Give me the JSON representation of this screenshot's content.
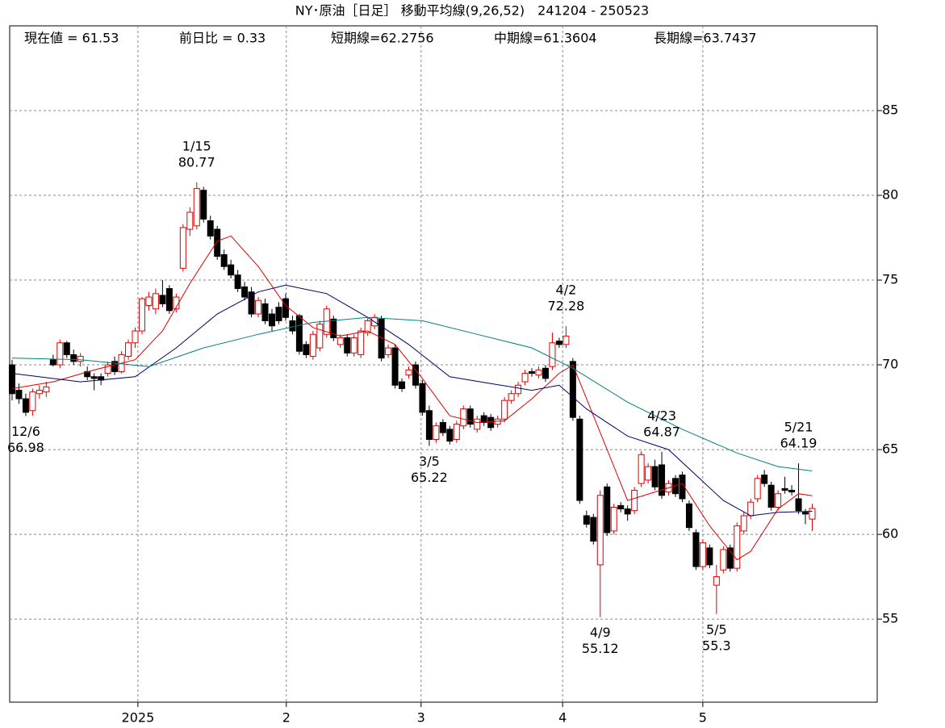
{
  "chart_data": {
    "type": "candlestick",
    "title": "NY･原油［日足］ 移動平均線(9,26,52)　241204 - 250523",
    "header": [
      "現在値 = 61.53",
      "前日比 = 0.33",
      "短期線=62.2756",
      "中期線=61.3604",
      "長期線=63.7437"
    ],
    "ylim": [
      50.1,
      90
    ],
    "yticks": [
      55,
      60,
      65,
      70,
      75,
      80,
      85
    ],
    "xlim": [
      -0.35,
      126.5
    ],
    "xticks": [
      {
        "value": 18.4,
        "label": "2025"
      },
      {
        "value": 40.1,
        "label": "2"
      },
      {
        "value": 59.8,
        "label": "3"
      },
      {
        "value": 80.5,
        "label": "4"
      },
      {
        "value": 101,
        "label": "5"
      }
    ],
    "grid": true,
    "up_color": "#e00000",
    "down_color": "#000000",
    "ohlc": [
      [
        70.0,
        70.3,
        67.9,
        68.3
      ],
      [
        68.5,
        68.9,
        67.7,
        68.0
      ],
      [
        68.0,
        68.3,
        66.98,
        67.2
      ],
      [
        67.3,
        68.6,
        67.0,
        68.4
      ],
      [
        68.3,
        68.8,
        68.0,
        68.5
      ],
      [
        68.4,
        69.0,
        68.1,
        68.7
      ],
      [
        70.3,
        70.6,
        69.9,
        70.0
      ],
      [
        70.0,
        71.5,
        69.8,
        71.3
      ],
      [
        71.3,
        71.4,
        70.4,
        70.6
      ],
      [
        70.6,
        70.9,
        70.0,
        70.2
      ],
      [
        70.2,
        70.7,
        69.9,
        70.5
      ],
      [
        69.6,
        69.9,
        69.1,
        69.3
      ],
      [
        69.3,
        69.5,
        68.5,
        69.2
      ],
      [
        69.3,
        69.5,
        68.8,
        69.1
      ],
      [
        69.5,
        70.2,
        69.3,
        70.0
      ],
      [
        70.2,
        70.5,
        69.4,
        69.6
      ],
      [
        69.6,
        70.8,
        69.5,
        70.6
      ],
      [
        70.5,
        71.5,
        70.3,
        71.3
      ],
      [
        71.3,
        72.2,
        71.0,
        72.0
      ],
      [
        72.0,
        74.0,
        71.8,
        73.9
      ],
      [
        73.5,
        74.3,
        73.2,
        74.0
      ],
      [
        73.3,
        74.5,
        73.0,
        74.2
      ],
      [
        74.1,
        75.0,
        73.4,
        73.6
      ],
      [
        74.5,
        74.7,
        73.0,
        73.2
      ],
      [
        73.3,
        74.2,
        73.1,
        74.0
      ],
      [
        75.7,
        78.3,
        75.5,
        78.1
      ],
      [
        78.0,
        79.3,
        77.6,
        79.0
      ],
      [
        78.2,
        80.77,
        78.0,
        80.4
      ],
      [
        80.3,
        80.5,
        78.4,
        78.6
      ],
      [
        78.5,
        78.8,
        77.4,
        77.6
      ],
      [
        78.0,
        78.2,
        76.2,
        76.4
      ],
      [
        76.5,
        76.8,
        75.6,
        75.8
      ],
      [
        75.9,
        76.2,
        75.1,
        75.3
      ],
      [
        75.3,
        75.6,
        74.3,
        74.5
      ],
      [
        74.6,
        74.9,
        73.8,
        74.0
      ],
      [
        74.3,
        74.6,
        72.8,
        73.0
      ],
      [
        73.0,
        74.0,
        72.8,
        73.8
      ],
      [
        73.6,
        73.9,
        72.4,
        72.6
      ],
      [
        73.0,
        73.3,
        72.0,
        72.3
      ],
      [
        73.4,
        73.7,
        72.4,
        72.6
      ],
      [
        73.9,
        74.2,
        72.6,
        72.8
      ],
      [
        72.6,
        72.9,
        71.8,
        72.0
      ],
      [
        72.9,
        73.0,
        70.6,
        70.8
      ],
      [
        71.2,
        71.4,
        70.4,
        70.6
      ],
      [
        70.5,
        72.0,
        70.3,
        71.8
      ],
      [
        71.0,
        72.6,
        70.8,
        72.4
      ],
      [
        71.8,
        73.5,
        71.6,
        73.3
      ],
      [
        72.7,
        72.9,
        71.4,
        71.6
      ],
      [
        71.2,
        71.8,
        71.0,
        71.6
      ],
      [
        71.6,
        71.8,
        70.5,
        70.7
      ],
      [
        70.7,
        71.8,
        70.5,
        71.6
      ],
      [
        70.6,
        72.2,
        70.4,
        72.0
      ],
      [
        71.9,
        72.8,
        71.7,
        72.6
      ],
      [
        72.3,
        73.0,
        72.1,
        72.8
      ],
      [
        72.7,
        72.9,
        70.2,
        70.4
      ],
      [
        70.6,
        71.2,
        70.4,
        71.0
      ],
      [
        71.0,
        71.2,
        68.6,
        68.8
      ],
      [
        69.0,
        69.2,
        68.4,
        68.6
      ],
      [
        69.4,
        69.9,
        69.2,
        69.7
      ],
      [
        70.0,
        70.2,
        68.6,
        68.8
      ],
      [
        68.9,
        69.1,
        67.0,
        67.2
      ],
      [
        67.3,
        67.6,
        65.22,
        65.6
      ],
      [
        65.6,
        66.6,
        65.4,
        66.4
      ],
      [
        66.6,
        66.8,
        65.8,
        66.0
      ],
      [
        66.2,
        66.4,
        65.3,
        65.5
      ],
      [
        65.6,
        66.7,
        65.4,
        66.5
      ],
      [
        66.4,
        67.6,
        66.2,
        67.4
      ],
      [
        67.4,
        67.6,
        66.3,
        66.5
      ],
      [
        66.2,
        67.0,
        66.0,
        66.8
      ],
      [
        67.0,
        67.2,
        66.4,
        66.6
      ],
      [
        66.9,
        67.1,
        66.1,
        66.3
      ],
      [
        66.5,
        67.0,
        66.3,
        66.8
      ],
      [
        66.8,
        68.1,
        66.6,
        67.9
      ],
      [
        67.9,
        68.5,
        67.7,
        68.3
      ],
      [
        68.3,
        69.0,
        68.1,
        68.8
      ],
      [
        69.0,
        69.7,
        68.8,
        69.5
      ],
      [
        69.6,
        69.8,
        69.3,
        69.5
      ],
      [
        69.4,
        69.9,
        69.2,
        69.7
      ],
      [
        69.8,
        70.0,
        69.0,
        69.2
      ],
      [
        69.9,
        71.9,
        69.7,
        71.3
      ],
      [
        71.4,
        71.6,
        71.0,
        71.2
      ],
      [
        71.2,
        72.28,
        71.0,
        71.7
      ],
      [
        70.2,
        70.4,
        66.7,
        66.9
      ],
      [
        66.8,
        67.0,
        61.8,
        62.0
      ],
      [
        61.1,
        61.4,
        60.4,
        60.6
      ],
      [
        61.0,
        61.2,
        59.4,
        59.6
      ],
      [
        58.2,
        62.6,
        55.12,
        62.3
      ],
      [
        62.8,
        63.0,
        59.9,
        60.1
      ],
      [
        60.2,
        61.8,
        60.0,
        61.6
      ],
      [
        61.7,
        61.9,
        61.3,
        61.5
      ],
      [
        61.5,
        61.7,
        60.8,
        61.2
      ],
      [
        61.4,
        62.8,
        61.2,
        62.6
      ],
      [
        63.0,
        64.9,
        62.8,
        64.7
      ],
      [
        63.2,
        64.2,
        63.0,
        64.0
      ],
      [
        64.0,
        64.4,
        62.6,
        62.8
      ],
      [
        64.1,
        64.87,
        62.1,
        62.3
      ],
      [
        62.5,
        63.2,
        62.3,
        63.0
      ],
      [
        63.3,
        63.5,
        62.2,
        62.4
      ],
      [
        63.5,
        63.7,
        61.9,
        62.1
      ],
      [
        61.8,
        62.0,
        60.2,
        60.4
      ],
      [
        60.1,
        60.3,
        57.9,
        58.1
      ],
      [
        58.1,
        59.7,
        57.9,
        59.5
      ],
      [
        59.2,
        59.4,
        58.0,
        58.2
      ],
      [
        57.0,
        58.2,
        55.3,
        57.5
      ],
      [
        57.9,
        59.3,
        57.7,
        59.1
      ],
      [
        59.2,
        59.4,
        57.8,
        58.0
      ],
      [
        58.0,
        60.7,
        57.8,
        60.5
      ],
      [
        60.2,
        61.3,
        60.0,
        61.1
      ],
      [
        61.1,
        62.1,
        60.9,
        61.9
      ],
      [
        62.1,
        63.5,
        61.9,
        63.3
      ],
      [
        63.5,
        63.8,
        62.8,
        63.0
      ],
      [
        62.9,
        63.1,
        61.4,
        61.6
      ],
      [
        61.6,
        62.6,
        61.4,
        62.4
      ],
      [
        62.7,
        63.4,
        62.4,
        62.6
      ],
      [
        62.6,
        62.9,
        62.3,
        62.5
      ],
      [
        62.1,
        64.19,
        61.2,
        61.4
      ],
      [
        61.3,
        61.5,
        60.6,
        61.2
      ],
      [
        60.9,
        61.8,
        60.2,
        61.53
      ]
    ],
    "series": [
      {
        "color": "#e00000",
        "x": [
          0,
          6,
          12,
          18,
          22,
          26,
          30,
          32,
          36,
          40,
          44,
          48,
          52,
          56,
          60,
          64,
          68,
          72,
          76,
          80,
          82,
          86,
          90,
          94,
          98,
          102,
          106,
          108,
          112,
          115,
          117
        ],
        "values": [
          68.6,
          69.0,
          69.7,
          70.3,
          72.0,
          74.8,
          77.3,
          77.6,
          75.8,
          73.5,
          72.2,
          71.7,
          72.0,
          71.2,
          69.2,
          67.0,
          66.6,
          66.7,
          68.0,
          69.5,
          70.0,
          66.0,
          62.0,
          62.5,
          63.0,
          60.5,
          58.5,
          59.0,
          61.5,
          62.4,
          62.28
        ]
      },
      {
        "color": "#000066",
        "x": [
          0,
          10,
          18,
          24,
          30,
          36,
          40,
          46,
          52,
          58,
          64,
          70,
          76,
          80,
          84,
          90,
          96,
          100,
          104,
          108,
          112,
          117
        ],
        "values": [
          69.5,
          69.0,
          69.3,
          71.0,
          73.0,
          74.3,
          74.7,
          74.2,
          72.8,
          71.2,
          69.3,
          68.9,
          68.5,
          68.8,
          67.4,
          65.8,
          65.0,
          63.5,
          62.0,
          61.1,
          61.3,
          61.36
        ]
      },
      {
        "color": "#008080",
        "x": [
          0,
          10,
          20,
          28,
          36,
          44,
          52,
          60,
          68,
          76,
          82,
          90,
          98,
          106,
          112,
          117
        ],
        "values": [
          70.4,
          70.3,
          69.9,
          71.0,
          71.8,
          72.5,
          72.8,
          72.6,
          71.8,
          71.0,
          69.8,
          67.8,
          66.2,
          64.8,
          64.0,
          63.74
        ]
      }
    ],
    "annotations": [
      {
        "date": "12/6",
        "value": 66.98
      },
      {
        "date": "1/15",
        "value": 80.77
      },
      {
        "date": "3/5",
        "value": 65.22
      },
      {
        "date": "4/2",
        "value": 72.28
      },
      {
        "date": "4/9",
        "value": 55.12
      },
      {
        "date": "4/23",
        "value": 64.87
      },
      {
        "date": "5/5",
        "value": 55.3
      },
      {
        "date": "5/21",
        "value": 64.19
      }
    ]
  }
}
